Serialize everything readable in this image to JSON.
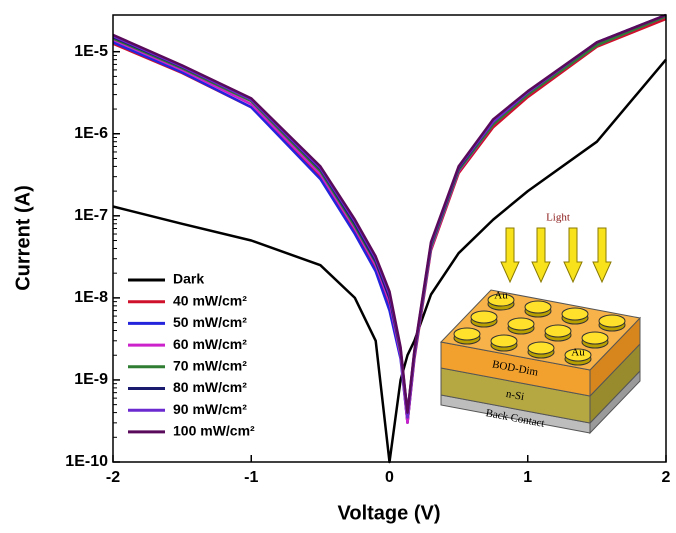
{
  "chart_data": {
    "type": "line",
    "x_label": "Voltage (V)",
    "y_label": "Current (A)",
    "xlim": [
      -2,
      2
    ],
    "xticks": [
      -2,
      -1,
      0,
      1,
      2
    ],
    "ylim": [
      1e-10,
      2.8e-05
    ],
    "ylog": true,
    "yticks": [
      {
        "value": 1e-10,
        "label": "1E-10"
      },
      {
        "value": 1e-09,
        "label": "1E-9"
      },
      {
        "value": 1e-08,
        "label": "1E-8"
      },
      {
        "value": 1e-07,
        "label": "1E-7"
      },
      {
        "value": 1e-06,
        "label": "1E-6"
      },
      {
        "value": 1e-05,
        "label": "1E-5"
      }
    ],
    "legend": "lower left",
    "x": [
      -2,
      -1.5,
      -1,
      -0.5,
      -0.25,
      -0.1,
      0,
      0.08,
      0.13,
      0.18,
      0.3,
      0.5,
      0.75,
      1,
      1.5,
      2
    ],
    "series": [
      {
        "name": "Dark",
        "color": "#000000",
        "values": [
          1.3e-07,
          8e-08,
          5e-08,
          2.5e-08,
          1e-08,
          3e-09,
          1e-10,
          1e-09,
          2e-09,
          3e-09,
          1.1e-08,
          3.5e-08,
          9e-08,
          2e-07,
          8e-07,
          8e-06
        ]
      },
      {
        "name": "40 mW/cm²",
        "color": "#d0112b",
        "values": [
          1.25e-05,
          5.5e-06,
          2.1e-06,
          3e-07,
          6.5e-08,
          2.3e-08,
          8e-09,
          2e-09,
          3e-10,
          1.8e-09,
          3.8e-08,
          3.3e-07,
          1.2e-06,
          2.8e-06,
          1.15e-05,
          2.5e-05
        ]
      },
      {
        "name": "50 mW/cm²",
        "color": "#2424dd",
        "values": [
          1.3e-05,
          5.6e-06,
          2.1e-06,
          2.8e-07,
          6e-08,
          2.1e-08,
          7e-09,
          1.8e-09,
          3e-10,
          1.9e-09,
          4e-08,
          3.5e-07,
          1.3e-06,
          3e-06,
          1.2e-05,
          2.7e-05
        ]
      },
      {
        "name": "60 mW/cm²",
        "color": "#cc22cc",
        "values": [
          1.4e-05,
          6e-06,
          2.3e-06,
          3.2e-07,
          7e-08,
          2.5e-08,
          9e-09,
          2e-09,
          3e-10,
          2e-09,
          4e-08,
          3.5e-07,
          1.3e-06,
          3e-06,
          1.2e-05,
          2.7e-05
        ]
      },
      {
        "name": "70 mW/cm²",
        "color": "#2e7d32",
        "values": [
          1.45e-05,
          6.3e-06,
          2.5e-06,
          3.5e-07,
          7.5e-08,
          2.7e-08,
          1e-08,
          2.2e-09,
          3.5e-10,
          2.1e-09,
          4.2e-08,
          3.6e-07,
          1.3e-06,
          3e-06,
          1.2e-05,
          2.7e-05
        ]
      },
      {
        "name": "80 mW/cm²",
        "color": "#1a1a6e",
        "values": [
          1.5e-05,
          6.5e-06,
          2.6e-06,
          3.7e-07,
          8e-08,
          2.8e-08,
          1e-08,
          2.3e-09,
          4e-10,
          2.2e-09,
          4.5e-08,
          3.8e-07,
          1.4e-06,
          3.2e-06,
          1.3e-05,
          2.8e-05
        ]
      },
      {
        "name": "90 mW/cm²",
        "color": "#6a2ad0",
        "values": [
          1.55e-05,
          6.6e-06,
          2.6e-06,
          3.8e-07,
          8.5e-08,
          3e-08,
          1.1e-08,
          2.4e-09,
          3.5e-10,
          2.2e-09,
          4.6e-08,
          3.9e-07,
          1.4e-06,
          3.2e-06,
          1.3e-05,
          2.8e-05
        ]
      },
      {
        "name": "100 mW/cm²",
        "color": "#5a0a5a",
        "values": [
          1.6e-05,
          6.8e-06,
          2.7e-06,
          4e-07,
          9e-08,
          3.2e-08,
          1.2e-08,
          2.5e-09,
          4e-10,
          2.3e-09,
          4.8e-08,
          4e-07,
          1.5e-06,
          3.3e-06,
          1.3e-05,
          2.8e-05
        ]
      }
    ],
    "inset": {
      "light": "Light",
      "au": [
        "Au",
        "Au"
      ],
      "layers": [
        "BOD-Dim",
        "n-Si",
        "Back Contact"
      ]
    }
  }
}
